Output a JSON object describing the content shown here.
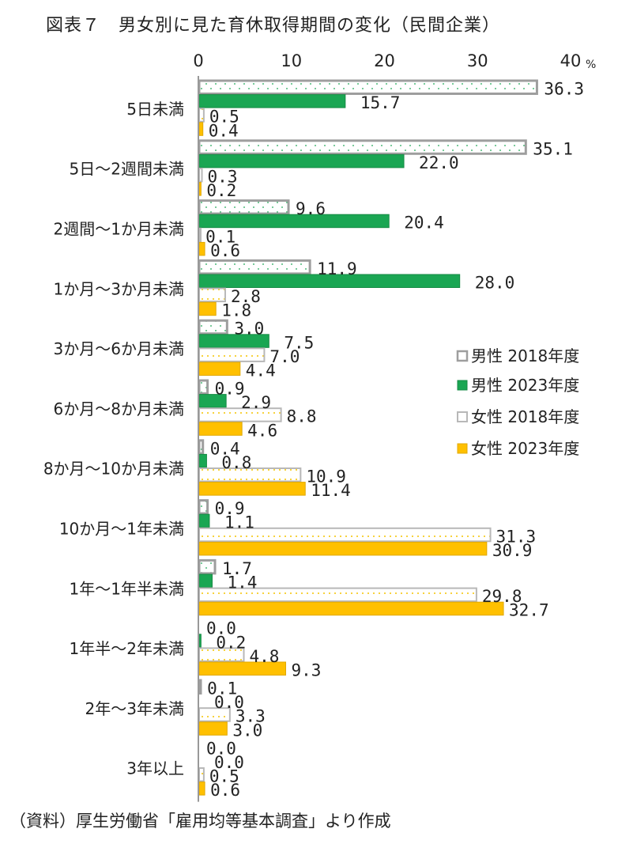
{
  "title": "図表７　男女別に見た育休取得期間の変化（民間企業）",
  "source": "（資料）厚生労働省「雇用均等基本調査」より作成",
  "colors": {
    "male_2018": "#9e9e9e",
    "male_2023": "#1aa653",
    "female_2018": "#f5c400",
    "female_2023": "#ffc000",
    "axis": "#999999"
  },
  "chart_data": {
    "type": "bar",
    "orientation": "horizontal",
    "unit": "%",
    "xlim": [
      0,
      40
    ],
    "xticks": [
      0,
      10,
      20,
      30,
      40
    ],
    "grid": false,
    "legend_position": "right",
    "categories": [
      "5日未満",
      "5日～2週間未満",
      "2週間～1か月未満",
      "1か月～3か月未満",
      "3か月～6か月未満",
      "6か月～8か月未満",
      "8か月～10か月未満",
      "10か月～1年未満",
      "1年～1年半未満",
      "1年半～2年未満",
      "2年～3年未満",
      "3年以上"
    ],
    "series": [
      {
        "name": "男性 2018年度",
        "style": "male_2018",
        "values": [
          36.3,
          35.1,
          9.6,
          11.9,
          3.0,
          0.9,
          0.4,
          0.9,
          1.7,
          0.0,
          0.1,
          0.0
        ]
      },
      {
        "name": "男性 2023年度",
        "style": "male_2023",
        "values": [
          15.7,
          22.0,
          20.4,
          28.0,
          7.5,
          2.9,
          0.8,
          1.1,
          1.4,
          0.2,
          0.0,
          0.0
        ]
      },
      {
        "name": "女性 2018年度",
        "style": "female_2018",
        "values": [
          0.5,
          0.3,
          0.1,
          2.8,
          7.0,
          8.8,
          10.9,
          31.3,
          29.8,
          4.8,
          3.3,
          0.5
        ]
      },
      {
        "name": "女性 2023年度",
        "style": "female_2023",
        "values": [
          0.4,
          0.2,
          0.6,
          1.8,
          4.4,
          4.6,
          11.4,
          30.9,
          32.7,
          9.3,
          3.0,
          0.6
        ]
      }
    ]
  }
}
